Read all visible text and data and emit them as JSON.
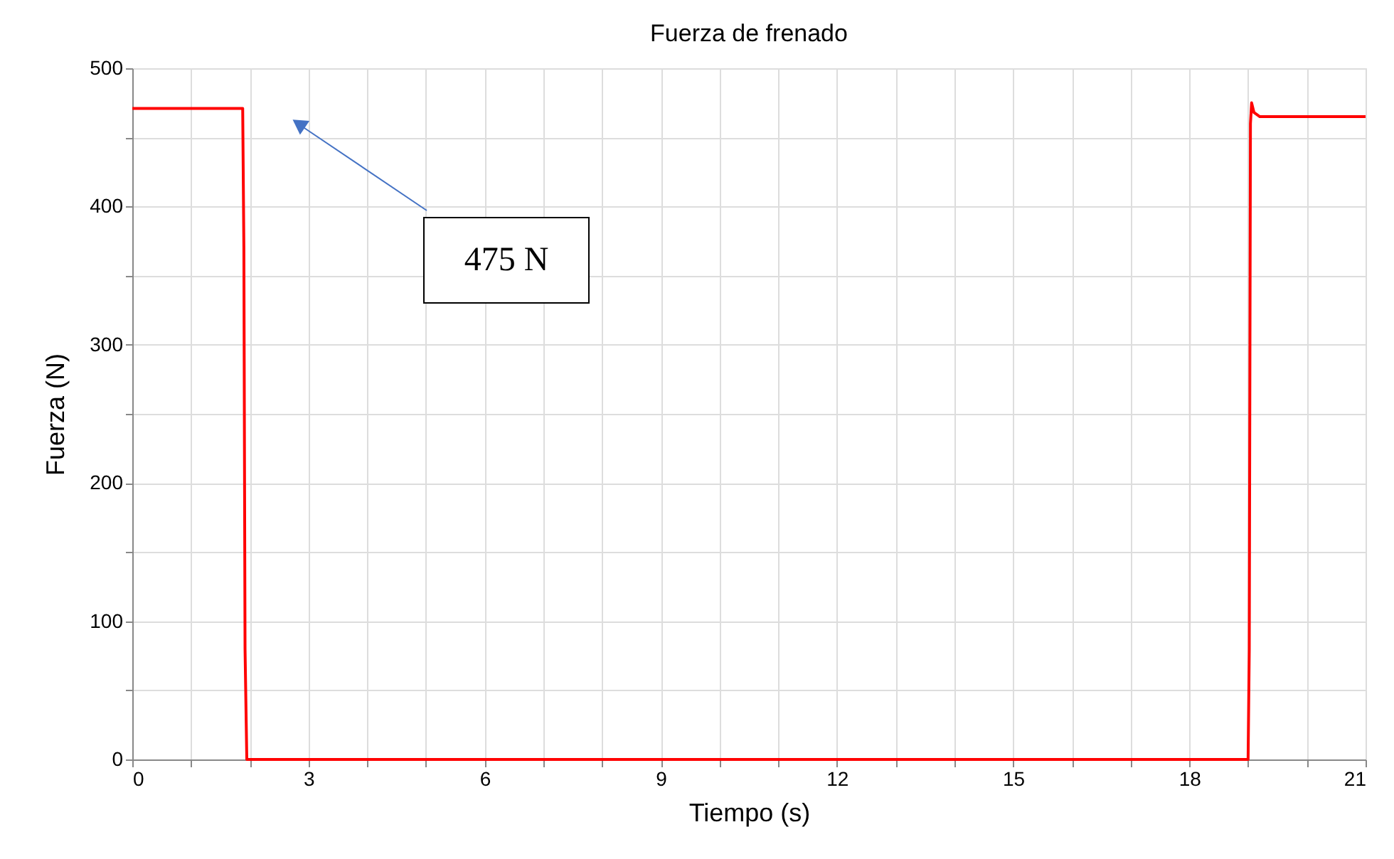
{
  "chart_data": {
    "type": "line",
    "title": "Fuerza de frenado",
    "xlabel": "Tiempo (s)",
    "ylabel": "Fuerza (N)",
    "x": [
      0,
      1.88,
      1.9,
      1.92,
      1.95,
      19.0,
      19.02,
      19.04,
      19.06,
      19.1,
      19.2,
      21
    ],
    "series": [
      {
        "color": "#ff0000",
        "values": [
          471,
          471,
          370,
          80,
          0,
          0,
          80,
          460,
          475,
          468,
          465,
          465
        ]
      }
    ],
    "xlim": [
      0,
      21
    ],
    "xticks": [
      0,
      {
        "value": 1,
        "label": null
      },
      {
        "value": 2,
        "label": null
      },
      3,
      {
        "value": 4,
        "label": null
      },
      {
        "value": 5,
        "label": null
      },
      6,
      {
        "value": 7,
        "label": null
      },
      {
        "value": 8,
        "label": null
      },
      9,
      {
        "value": 10,
        "label": null
      },
      {
        "value": 11,
        "label": null
      },
      12,
      {
        "value": 13,
        "label": null
      },
      {
        "value": 14,
        "label": null
      },
      15,
      {
        "value": 16,
        "label": null
      },
      {
        "value": 17,
        "label": null
      },
      18,
      {
        "value": 19,
        "label": null
      },
      {
        "value": 20,
        "label": null
      },
      21
    ],
    "ylim": [
      0,
      500
    ],
    "yticks": [
      0,
      {
        "value": 50,
        "label": null
      },
      100,
      {
        "value": 150,
        "label": null
      },
      200,
      {
        "value": 250,
        "label": null
      },
      300,
      {
        "value": 350,
        "label": null
      },
      400,
      {
        "value": 450,
        "label": null
      },
      500
    ],
    "grid": true,
    "marker": "none",
    "line_style": "solid",
    "annotations": [
      "475 N"
    ]
  }
}
